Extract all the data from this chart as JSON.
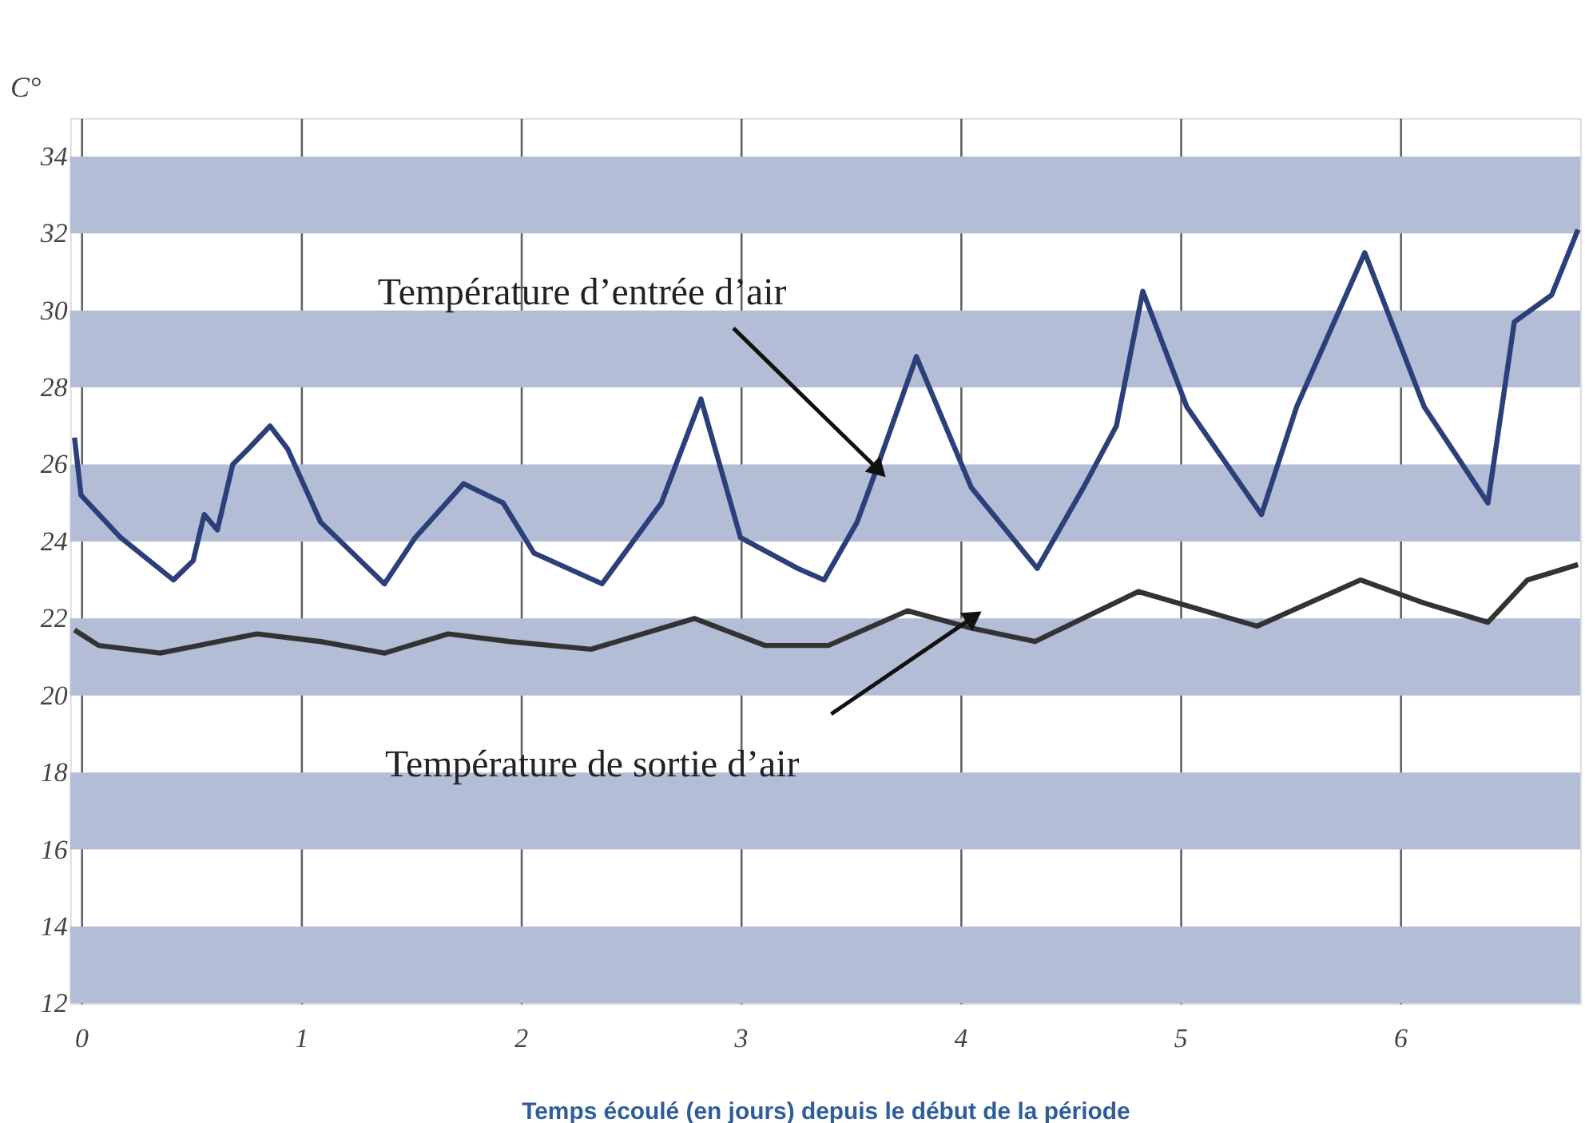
{
  "chart_data": {
    "type": "line",
    "xlabel": "Temps écoulé (en jours) depuis le début de la période",
    "ylabel": "C°",
    "xlim": [
      -0.05,
      6.82
    ],
    "xticks": [
      0,
      1,
      2,
      3,
      4,
      5,
      6
    ],
    "ylim": [
      12,
      35
    ],
    "yticks": [
      12,
      14,
      16,
      18,
      20,
      22,
      24,
      26,
      28,
      30,
      32,
      34
    ],
    "grid": "x",
    "bands": [
      {
        "axis": "y",
        "from": 12,
        "to": 14,
        "color": "#b4bdd6"
      },
      {
        "axis": "y",
        "from": 16,
        "to": 18,
        "color": "#b4bdd6"
      },
      {
        "axis": "y",
        "from": 20,
        "to": 22,
        "color": "#b4bdd6"
      },
      {
        "axis": "y",
        "from": 24,
        "to": 26,
        "color": "#b4bdd6"
      },
      {
        "axis": "y",
        "from": 28,
        "to": 30,
        "color": "#b4bdd6"
      },
      {
        "axis": "y",
        "from": 32,
        "to": 34,
        "color": "#b4bdd6"
      }
    ],
    "annotations": [
      {
        "text": "Température d’entrée d’air",
        "x": 3.62,
        "y": 25.9
      },
      {
        "text": "Température de sortie d’air",
        "x": 4.05,
        "y": 22.0
      }
    ],
    "series": [
      {
        "color": "#2b3f7a",
        "x": [
          -0.03,
          0.0,
          0.18,
          0.42,
          0.51,
          0.56,
          0.62,
          0.69,
          0.76,
          0.86,
          0.94,
          1.09,
          1.38,
          1.52,
          1.74,
          1.92,
          2.06,
          2.37,
          2.64,
          2.82,
          3.0,
          3.26,
          3.38,
          3.53,
          3.62,
          3.8,
          4.05,
          4.35,
          4.56,
          4.71,
          4.83,
          5.03,
          5.37,
          5.53,
          5.84,
          6.11,
          6.4,
          6.52,
          6.69,
          6.81
        ],
        "values": [
          26.7,
          25.2,
          24.1,
          23.0,
          23.5,
          24.7,
          24.3,
          26.0,
          26.4,
          27.0,
          26.4,
          24.5,
          22.9,
          24.1,
          25.5,
          25.0,
          23.7,
          22.9,
          25.0,
          27.7,
          24.1,
          23.3,
          23.0,
          24.5,
          25.9,
          28.8,
          25.4,
          23.3,
          25.4,
          27.0,
          30.5,
          27.5,
          24.7,
          27.5,
          31.5,
          27.5,
          25.0,
          29.7,
          30.4,
          32.1
        ]
      },
      {
        "color": "#333333",
        "x": [
          -0.03,
          0.08,
          0.36,
          0.8,
          1.09,
          1.38,
          1.67,
          1.95,
          2.32,
          2.79,
          3.11,
          3.4,
          3.76,
          4.05,
          4.34,
          4.81,
          5.35,
          5.82,
          6.11,
          6.4,
          6.58,
          6.81
        ],
        "values": [
          21.7,
          21.3,
          21.1,
          21.6,
          21.4,
          21.1,
          21.6,
          21.4,
          21.2,
          22.0,
          21.3,
          21.3,
          22.2,
          21.75,
          21.4,
          22.7,
          21.8,
          23.0,
          22.4,
          21.9,
          23.0,
          23.4
        ]
      }
    ]
  }
}
